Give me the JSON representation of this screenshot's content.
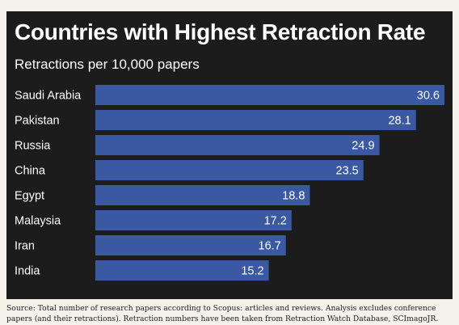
{
  "title": "Countries with Highest Retraction Rate",
  "subtitle": "Retractions per 10,000 papers",
  "source": "Source: Total number of research papers according to Scopus: articles and reviews. Analysis excludes conference papers (and their retractions). Retraction numbers have been taken from Retraction Watch Database, SCImagoJR.",
  "colors": {
    "background": "#1c1c1c",
    "bar": "#3b59a3",
    "text": "#ffffff",
    "page": "#f4f1e8"
  },
  "chart_data": {
    "type": "bar",
    "orientation": "horizontal",
    "title": "Countries with Highest Retraction Rate",
    "subtitle": "Retractions per 10,000 papers",
    "categories": [
      "Saudi Arabia",
      "Pakistan",
      "Russia",
      "China",
      "Egypt",
      "Malaysia",
      "Iran",
      "India"
    ],
    "values": [
      30.6,
      28.1,
      24.9,
      23.5,
      18.8,
      17.2,
      16.7,
      15.2
    ],
    "value_labels": [
      "30.6",
      "28.1",
      "24.9",
      "23.5",
      "18.8",
      "17.2",
      "16.7",
      "15.2"
    ],
    "xlim": [
      0,
      30.6
    ],
    "grid": false,
    "legend": "none",
    "data_labels": "inside-end"
  }
}
